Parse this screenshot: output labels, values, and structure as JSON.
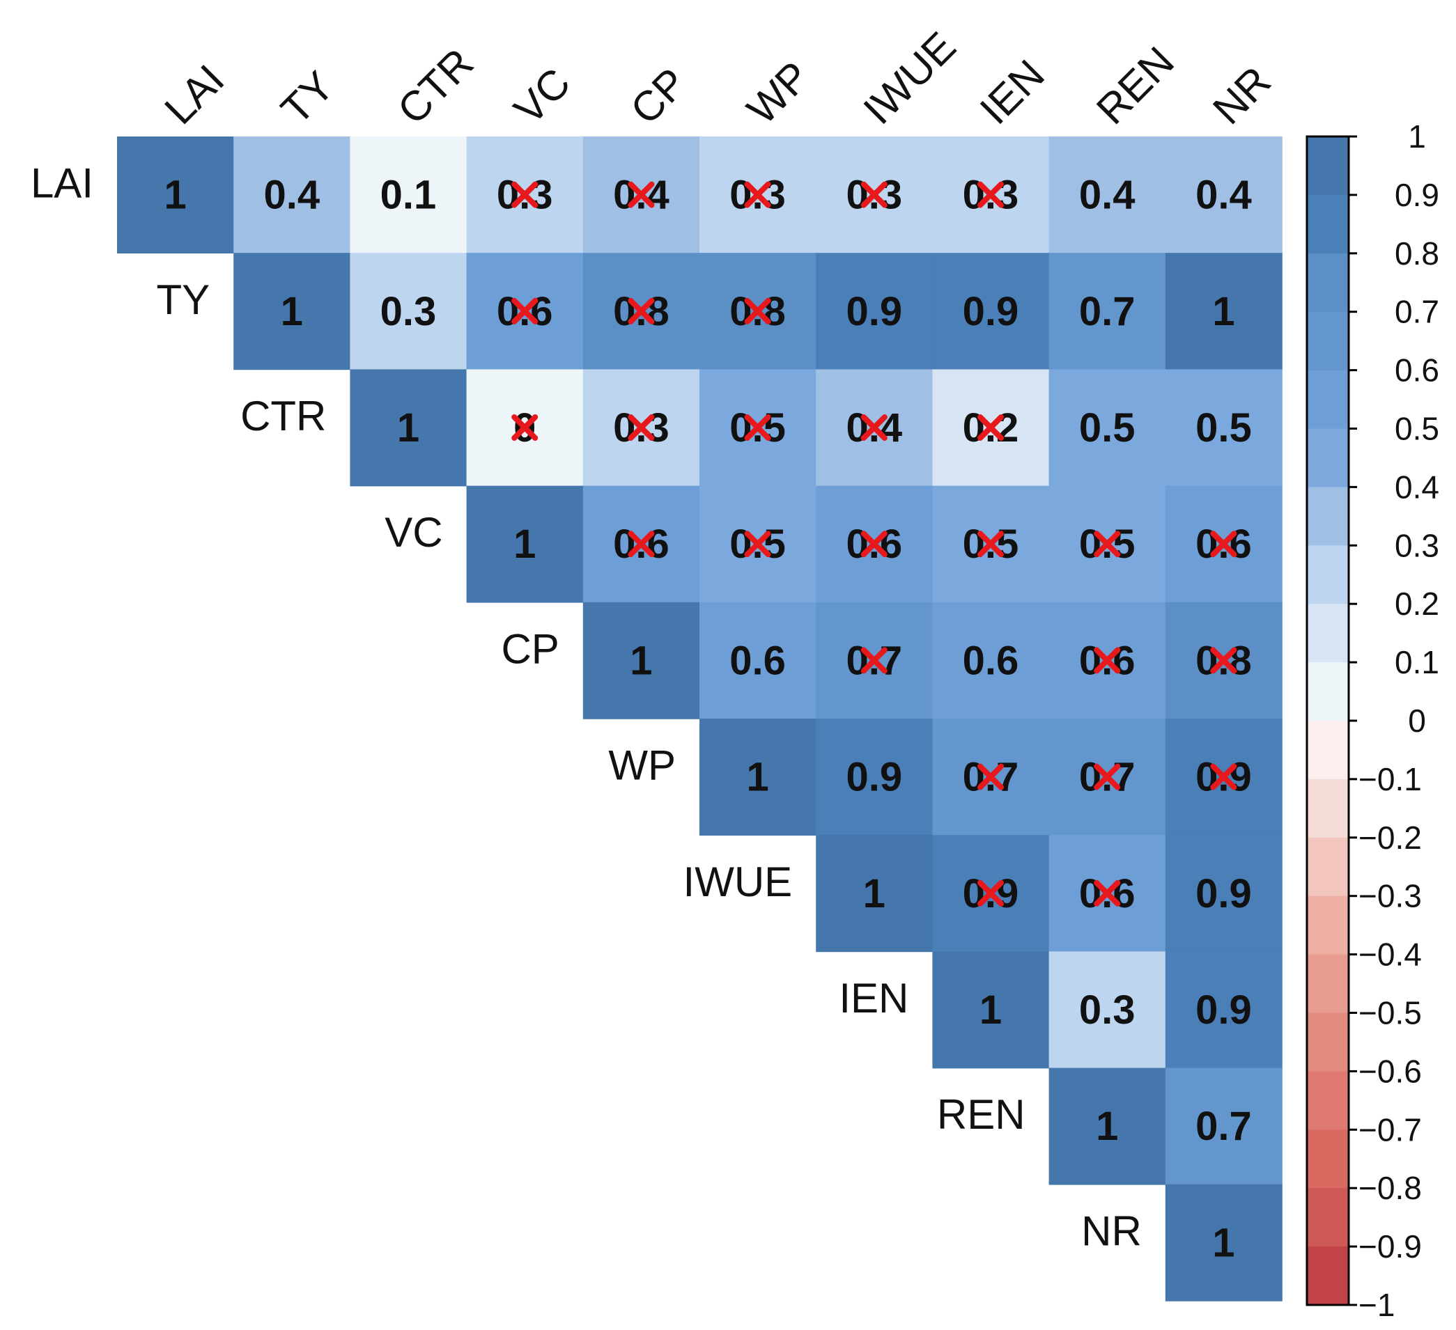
{
  "chart_data": {
    "type": "heatmap",
    "subtype": "correlation-upper-triangle",
    "variables": [
      "LAI",
      "TY",
      "CTR",
      "VC",
      "CP",
      "WP",
      "IWUE",
      "IEN",
      "REN",
      "NR"
    ],
    "matrix": [
      [
        1,
        0.4,
        0.1,
        0.3,
        0.4,
        0.3,
        0.3,
        0.3,
        0.4,
        0.4
      ],
      [
        null,
        1,
        0.3,
        0.6,
        0.8,
        0.8,
        0.9,
        0.9,
        0.7,
        1
      ],
      [
        null,
        null,
        1,
        0,
        0.3,
        0.5,
        0.4,
        0.2,
        0.5,
        0.5
      ],
      [
        null,
        null,
        null,
        1,
        0.6,
        0.5,
        0.6,
        0.5,
        0.5,
        0.6
      ],
      [
        null,
        null,
        null,
        null,
        1,
        0.6,
        0.7,
        0.6,
        0.6,
        0.8
      ],
      [
        null,
        null,
        null,
        null,
        null,
        1,
        0.9,
        0.7,
        0.7,
        0.9
      ],
      [
        null,
        null,
        null,
        null,
        null,
        null,
        1,
        0.9,
        0.6,
        0.9
      ],
      [
        null,
        null,
        null,
        null,
        null,
        null,
        null,
        1,
        0.3,
        0.9
      ],
      [
        null,
        null,
        null,
        null,
        null,
        null,
        null,
        null,
        1,
        0.7
      ],
      [
        null,
        null,
        null,
        null,
        null,
        null,
        null,
        null,
        null,
        1
      ]
    ],
    "crossed": [
      [
        false,
        false,
        false,
        true,
        true,
        true,
        true,
        true,
        false,
        false
      ],
      [
        false,
        false,
        false,
        true,
        true,
        true,
        false,
        false,
        false,
        false
      ],
      [
        false,
        false,
        false,
        true,
        true,
        true,
        true,
        true,
        false,
        false
      ],
      [
        false,
        false,
        false,
        false,
        true,
        true,
        true,
        true,
        true,
        true
      ],
      [
        false,
        false,
        false,
        false,
        false,
        false,
        true,
        false,
        true,
        true
      ],
      [
        false,
        false,
        false,
        false,
        false,
        false,
        false,
        true,
        true,
        true
      ],
      [
        false,
        false,
        false,
        false,
        false,
        false,
        false,
        true,
        true,
        false
      ],
      [
        false,
        false,
        false,
        false,
        false,
        false,
        false,
        false,
        false,
        false
      ],
      [
        false,
        false,
        false,
        false,
        false,
        false,
        false,
        false,
        false,
        false
      ],
      [
        false,
        false,
        false,
        false,
        false,
        false,
        false,
        false,
        false,
        false
      ]
    ],
    "colorbar": {
      "range": [
        -1,
        1
      ],
      "ticks": [
        1,
        0.9,
        0.8,
        0.7,
        0.6,
        0.5,
        0.4,
        0.3,
        0.2,
        0.1,
        0,
        -0.1,
        -0.2,
        -0.3,
        -0.4,
        -0.5,
        -0.6,
        -0.7,
        -0.8,
        -0.9,
        -1
      ],
      "tick_labels": [
        "1",
        "0.9",
        "0.8",
        "0.7",
        "0.6",
        "0.5",
        "0.4",
        "0.3",
        "0.2",
        "0.1",
        "0",
        "−0.1",
        "−0.2",
        "−0.3",
        "−0.4",
        "−0.5",
        "−0.6",
        "−0.7",
        "−0.8",
        "−0.9",
        "−1"
      ],
      "position": "right"
    },
    "colors": {
      "positive_steps": [
        "#eef5f9",
        "#d6e4f4",
        "#bdd5ee",
        "#9fc0e4",
        "#7ba9dd",
        "#6d9fd6",
        "#6396cd",
        "#5b8fc6",
        "#4b7fb8",
        "#4577ad"
      ],
      "negative_steps": [
        "#fbeeec",
        "#f6dcd8",
        "#f2c6be",
        "#eeb0a5",
        "#e99d91",
        "#e48b80",
        "#df7a70",
        "#d86a62",
        "#cf5955",
        "#c24448"
      ],
      "border": "#000000",
      "text": "#111111",
      "cross": "#e8191c"
    },
    "title": "",
    "xlabel": "",
    "ylabel": ""
  }
}
